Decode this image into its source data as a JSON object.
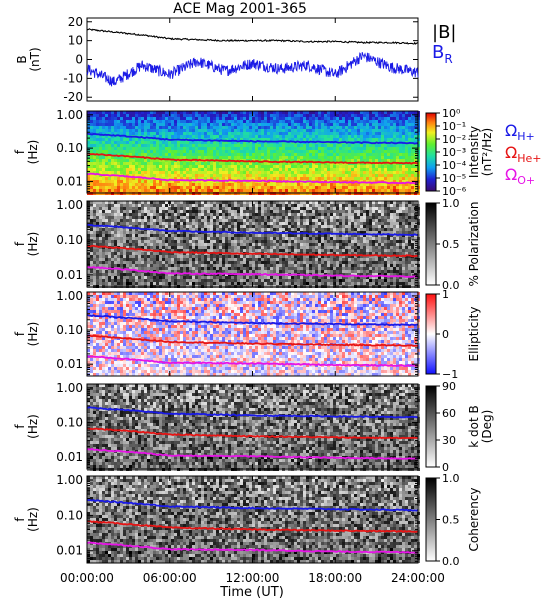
{
  "chart_data": {
    "type": "spectrogram",
    "title": "ACE Mag 2001-365",
    "xlabel": "Time (UT)",
    "x_ticks": [
      "00:00:00",
      "06:00:00",
      "12:00:00",
      "18:00:00",
      "24:00:00"
    ],
    "x_range_hours": [
      0,
      24
    ],
    "line_colors": {
      "H+": "#1a1ae6",
      "He+": "#e61414",
      "O+": "#e614e6",
      "B_total": "#000000",
      "B_R": "#1a1ae6"
    },
    "gyro_lines": [
      {
        "ion": "H+",
        "hours": [
          0,
          6,
          12,
          18,
          24
        ],
        "f_hz": [
          0.27,
          0.18,
          0.16,
          0.15,
          0.14
        ]
      },
      {
        "ion": "He+",
        "hours": [
          0,
          6,
          12,
          18,
          24
        ],
        "f_hz": [
          0.068,
          0.045,
          0.04,
          0.037,
          0.035
        ]
      },
      {
        "ion": "O+",
        "hours": [
          0,
          6,
          12,
          18,
          24
        ],
        "f_hz": [
          0.017,
          0.011,
          0.0105,
          0.0095,
          0.009
        ]
      }
    ],
    "panels": [
      {
        "type": "line",
        "ylabel": [
          "B",
          "(nT)"
        ],
        "ylim": [
          -22,
          22
        ],
        "ytick_labels": [
          "20",
          "10",
          "0",
          "-10",
          "-20"
        ],
        "ytick_values": [
          20,
          10,
          0,
          -10,
          -20
        ],
        "legend": [
          {
            "label": "|B|",
            "color": "#000000"
          },
          {
            "label": "B",
            "sub": "R",
            "color": "#1a1ae6"
          }
        ],
        "series": [
          {
            "name": "|B|",
            "hours": [
              0,
              2,
              4,
              6,
              8,
              10,
              12,
              14,
              16,
              18,
              20,
              22,
              24
            ],
            "values": [
              16,
              14.5,
              13,
              11,
              10.5,
              10,
              10,
              10,
              9.5,
              9.5,
              9,
              9,
              8.5
            ]
          },
          {
            "name": "B_R",
            "hours": [
              0,
              2,
              4,
              6,
              8,
              10,
              12,
              14,
              16,
              18,
              20,
              22,
              24
            ],
            "values": [
              -5,
              -12,
              -3,
              -8,
              -1,
              -6,
              -2,
              -5,
              -3,
              -8,
              2,
              -4,
              -7
            ]
          }
        ]
      },
      {
        "type": "spectrogram",
        "colormap": "rainbow",
        "colorbar_label": [
          "Intensity",
          "(nT²/Hz)"
        ],
        "colorbar_ticks": [
          "10⁰",
          "10⁻¹",
          "10⁻²",
          "10⁻³",
          "10⁻⁴",
          "10⁻⁵",
          "10⁻⁶"
        ],
        "labels_right": [
          {
            "text": "Ω",
            "sub": "H+",
            "color": "#1a1ae6"
          },
          {
            "text": "Ω",
            "sub": "He+",
            "color": "#e61414"
          },
          {
            "text": "Ω",
            "sub": "O+",
            "color": "#e614e6"
          }
        ]
      },
      {
        "type": "spectrogram",
        "colormap": "gray",
        "colorbar_label": [
          "% Polarization"
        ],
        "colorbar_ticks": [
          "1.0",
          "0.5",
          "0.0"
        ]
      },
      {
        "type": "spectrogram",
        "colormap": "bwr",
        "colorbar_label": [
          "Ellipticity"
        ],
        "colorbar_ticks": [
          "1",
          "0",
          "−1"
        ]
      },
      {
        "type": "spectrogram",
        "colormap": "gray",
        "colorbar_label": [
          "k dot B",
          "(Deg)"
        ],
        "colorbar_ticks": [
          "90",
          "60",
          "30",
          "0"
        ]
      },
      {
        "type": "spectrogram",
        "colormap": "gray",
        "colorbar_label": [
          "Coherency"
        ],
        "colorbar_ticks": [
          "1.0",
          "0.5",
          "0.0"
        ]
      }
    ],
    "freq_axis": {
      "ylabel": [
        "f",
        "(Hz)"
      ],
      "scale": "log",
      "ylim_hz": [
        0.0045,
        1.3
      ],
      "ytick_labels": [
        "1.00",
        "0.10",
        "0.01"
      ],
      "ytick_values": [
        1.0,
        0.1,
        0.01
      ]
    }
  }
}
